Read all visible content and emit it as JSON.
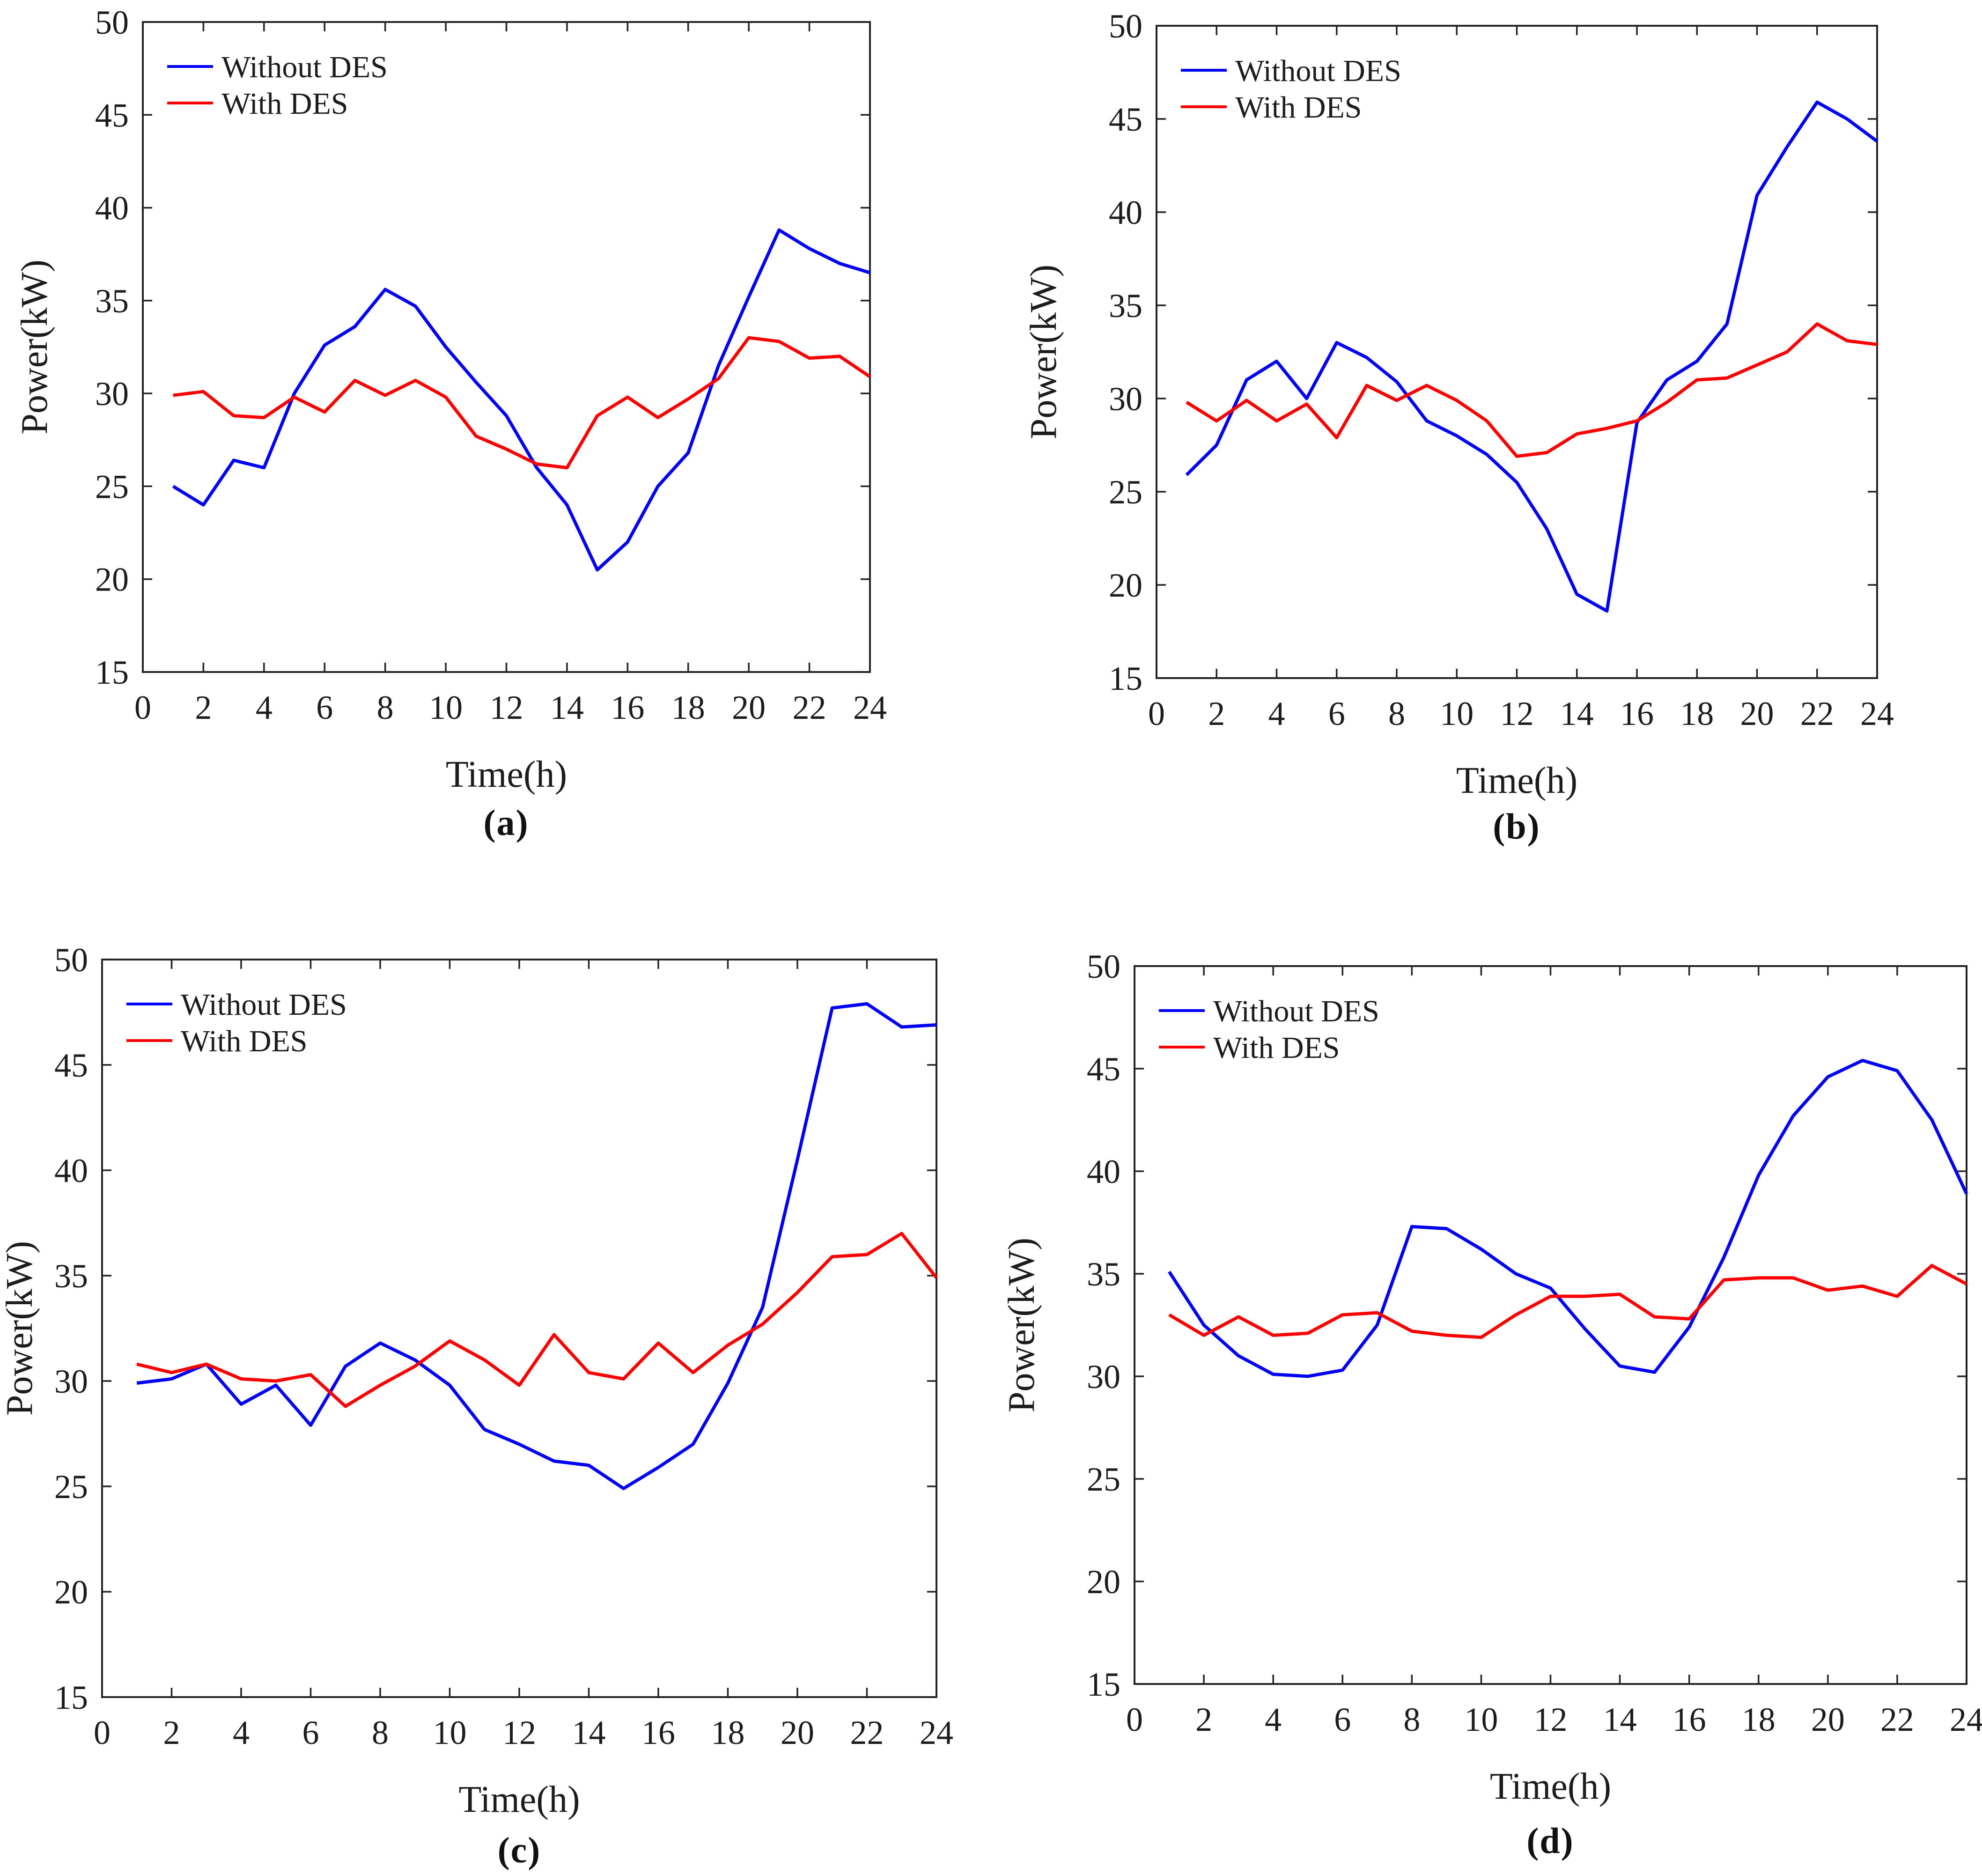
{
  "figure": {
    "background": "#ffffff",
    "axis_color": "#232323",
    "text_color": "#1c1c1c",
    "xlabel": "Time(h)",
    "ylabel": "Power(kW)",
    "x_ticks": [
      0,
      2,
      4,
      6,
      8,
      10,
      12,
      14,
      16,
      18,
      20,
      22,
      24
    ],
    "y_ticks": [
      15,
      20,
      25,
      30,
      35,
      40,
      45,
      50
    ],
    "legend_position": "top-left",
    "grid": false,
    "series_colors": {
      "without_des": "#0000f5",
      "with_des": "#fa0000"
    }
  },
  "chart_data": [
    {
      "id": "a",
      "type": "line",
      "caption": "(a)",
      "xlabel": "Time(h)",
      "ylabel": "Power(kW)",
      "xlim": [
        0,
        24
      ],
      "ylim": [
        15,
        50
      ],
      "x": [
        1,
        2,
        3,
        4,
        5,
        6,
        7,
        8,
        9,
        10,
        11,
        12,
        13,
        14,
        15,
        16,
        17,
        18,
        19,
        20,
        21,
        22,
        23,
        24
      ],
      "series": [
        {
          "name": "Without DES",
          "color": "#0000f5",
          "values": [
            25.0,
            24.0,
            26.4,
            26.0,
            30.0,
            32.6,
            33.6,
            35.6,
            34.7,
            32.5,
            30.6,
            28.8,
            26.0,
            24.0,
            20.5,
            22.0,
            25.0,
            26.8,
            31.5,
            35.2,
            38.8,
            37.8,
            37.0,
            36.5
          ]
        },
        {
          "name": "With DES",
          "color": "#fa0000",
          "values": [
            29.9,
            30.1,
            28.8,
            28.7,
            29.8,
            29.0,
            30.7,
            29.9,
            30.7,
            29.8,
            27.7,
            27.0,
            26.2,
            26.0,
            28.8,
            29.8,
            28.7,
            29.7,
            30.8,
            33.0,
            32.8,
            31.9,
            32.0,
            30.9
          ]
        }
      ]
    },
    {
      "id": "b",
      "type": "line",
      "caption": "(b)",
      "xlabel": "Time(h)",
      "ylabel": "Power(kW)",
      "xlim": [
        0,
        24
      ],
      "ylim": [
        15,
        50
      ],
      "x": [
        1,
        2,
        3,
        4,
        5,
        6,
        7,
        8,
        9,
        10,
        11,
        12,
        13,
        14,
        15,
        16,
        17,
        18,
        19,
        20,
        21,
        22,
        23,
        24
      ],
      "series": [
        {
          "name": "Without DES",
          "color": "#0000f5",
          "values": [
            25.9,
            27.5,
            31.0,
            32.0,
            30.0,
            33.0,
            32.2,
            30.9,
            28.8,
            28.0,
            27.0,
            25.5,
            23.0,
            19.5,
            18.6,
            28.7,
            31.0,
            32.0,
            34.0,
            40.9,
            43.5,
            45.9,
            45.0,
            43.8
          ]
        },
        {
          "name": "With DES",
          "color": "#fa0000",
          "values": [
            29.8,
            28.8,
            29.9,
            28.8,
            29.7,
            27.9,
            30.7,
            29.9,
            30.7,
            29.9,
            28.8,
            26.9,
            27.1,
            28.1,
            28.4,
            28.8,
            29.8,
            31.0,
            31.1,
            31.8,
            32.5,
            34.0,
            33.1,
            32.9
          ]
        }
      ]
    },
    {
      "id": "c",
      "type": "line",
      "caption": "(c)",
      "xlabel": "Time(h)",
      "ylabel": "Power(kW)",
      "xlim": [
        0,
        24
      ],
      "ylim": [
        15,
        50
      ],
      "x": [
        1,
        2,
        3,
        4,
        5,
        6,
        7,
        8,
        9,
        10,
        11,
        12,
        13,
        14,
        15,
        16,
        17,
        18,
        19,
        20,
        21,
        22,
        23,
        24
      ],
      "series": [
        {
          "name": "Without DES",
          "color": "#0000f5",
          "values": [
            29.9,
            30.1,
            30.8,
            28.9,
            29.8,
            27.9,
            30.7,
            31.8,
            31.0,
            29.8,
            27.7,
            27.0,
            26.2,
            26.0,
            24.9,
            25.9,
            27.0,
            29.9,
            33.5,
            40.5,
            47.7,
            47.9,
            46.8,
            46.9
          ]
        },
        {
          "name": "With DES",
          "color": "#fa0000",
          "values": [
            30.8,
            30.4,
            30.8,
            30.1,
            30.0,
            30.3,
            28.8,
            29.8,
            30.7,
            31.9,
            31.0,
            29.8,
            32.2,
            30.4,
            30.1,
            31.8,
            30.4,
            31.7,
            32.7,
            34.2,
            35.9,
            36.0,
            37.0,
            34.9
          ]
        }
      ]
    },
    {
      "id": "d",
      "type": "line",
      "caption": "(d)",
      "xlabel": "Time(h)",
      "ylabel": "Power(kW)",
      "xlim": [
        0,
        24
      ],
      "ylim": [
        15,
        50
      ],
      "x": [
        1,
        2,
        3,
        4,
        5,
        6,
        7,
        8,
        9,
        10,
        11,
        12,
        13,
        14,
        15,
        16,
        17,
        18,
        19,
        20,
        21,
        22,
        23,
        24
      ],
      "series": [
        {
          "name": "Without DES",
          "color": "#0000f5",
          "values": [
            35.1,
            32.5,
            31.0,
            30.1,
            30.0,
            30.3,
            32.5,
            37.3,
            37.2,
            36.2,
            35.0,
            34.3,
            32.3,
            30.5,
            30.2,
            32.4,
            35.8,
            39.8,
            42.7,
            44.6,
            45.4,
            44.9,
            42.5,
            38.9
          ]
        },
        {
          "name": "With DES",
          "color": "#fa0000",
          "values": [
            33.0,
            32.0,
            32.9,
            32.0,
            32.1,
            33.0,
            33.1,
            32.2,
            32.0,
            31.9,
            33.0,
            33.9,
            33.9,
            34.0,
            32.9,
            32.8,
            34.7,
            34.8,
            34.8,
            34.2,
            34.4,
            33.9,
            35.4,
            34.5
          ]
        }
      ]
    }
  ]
}
